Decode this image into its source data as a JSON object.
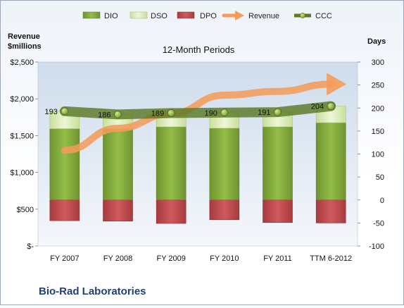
{
  "chart_data": {
    "type": "bar",
    "title": "12-Month Periods",
    "company": "Bio-Rad Laboratories",
    "left_axis_label_line1": "Revenue",
    "left_axis_label_line2": "$millions",
    "right_axis_label": "Days",
    "categories": [
      "FY 2007",
      "FY 2008",
      "FY 2009",
      "FY 2010",
      "FY 2011",
      "TTM 6-2012"
    ],
    "series": [
      {
        "name": "DIO",
        "values": [
          155,
          155,
          159,
          156,
          159,
          168
        ],
        "color": "#7ea23a"
      },
      {
        "name": "DSO",
        "values": [
          38,
          31,
          30,
          34,
          32,
          36
        ],
        "color": "#d9ecb0"
      },
      {
        "name": "DPO",
        "values": [
          -45,
          -46,
          -51,
          -43,
          -49,
          -50
        ],
        "color": "#b8464a"
      },
      {
        "name": "Revenue",
        "values": [
          1300,
          1600,
          1800,
          2050,
          2100,
          2200
        ],
        "color": "#f39c5a"
      },
      {
        "name": "CCC",
        "values": [
          193,
          186,
          189,
          190,
          191,
          204
        ],
        "color": "#5a7a26"
      }
    ],
    "left_axis": {
      "min": 0,
      "max": 2500,
      "ticks": [
        "$-",
        "$500",
        "$1,000",
        "$1,500",
        "$2,000",
        "$2,500"
      ]
    },
    "right_axis": {
      "min": -100,
      "max": 300,
      "ticks": [
        "-100",
        "-50",
        "0",
        "50",
        "100",
        "150",
        "200",
        "250",
        "300"
      ]
    },
    "legend_position": "top",
    "grid": false
  }
}
